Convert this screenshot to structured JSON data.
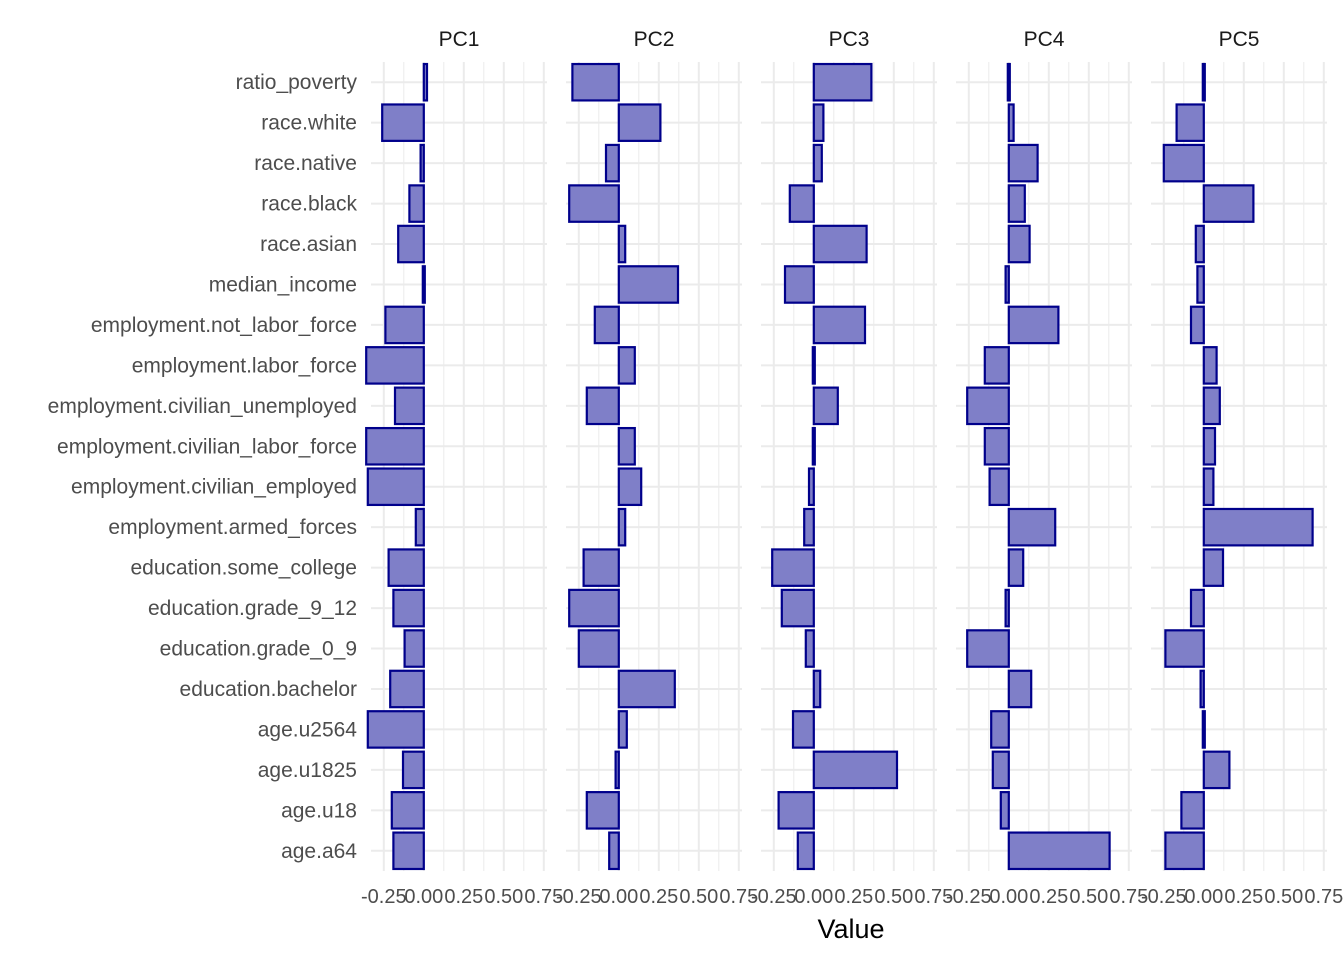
{
  "chart_data": {
    "type": "bar",
    "orientation": "horizontal",
    "facet_by": "component",
    "xlabel": "Value",
    "ylabel": "",
    "xlim": [
      -0.33,
      0.77
    ],
    "x_ticks": [
      -0.25,
      0,
      0.25,
      0.5,
      0.75
    ],
    "x_tick_labels": [
      "-0.25",
      "0.00",
      "0.25",
      "0.50",
      "0.75"
    ],
    "grid": true,
    "colors": {
      "fill": "#7f7fc8",
      "stroke": "#00008b",
      "grid": "#ebebeb"
    },
    "categories": [
      "ratio_poverty",
      "race.white",
      "race.native",
      "race.black",
      "race.asian",
      "median_income",
      "employment.not_labor_force",
      "employment.labor_force",
      "employment.civilian_unemployed",
      "employment.civilian_labor_force",
      "employment.civilian_employed",
      "employment.armed_forces",
      "education.some_college",
      "education.grade_9_12",
      "education.grade_0_9",
      "education.bachelor",
      "age.u2564",
      "age.u1825",
      "age.u18",
      "age.a64"
    ],
    "series": [
      {
        "name": "PC1",
        "values": [
          0.02,
          -0.26,
          -0.02,
          -0.09,
          -0.16,
          0.01,
          -0.24,
          -0.36,
          -0.18,
          -0.36,
          -0.35,
          -0.05,
          -0.22,
          -0.19,
          -0.12,
          -0.21,
          -0.35,
          -0.13,
          -0.2,
          -0.19
        ]
      },
      {
        "name": "PC2",
        "values": [
          -0.29,
          0.26,
          -0.08,
          -0.31,
          0.04,
          0.37,
          -0.15,
          0.1,
          -0.2,
          0.1,
          0.14,
          0.04,
          -0.22,
          -0.31,
          -0.25,
          0.35,
          0.05,
          -0.02,
          -0.2,
          -0.06
        ]
      },
      {
        "name": "PC3",
        "values": [
          0.36,
          0.06,
          0.05,
          -0.15,
          0.33,
          -0.18,
          0.32,
          0.0,
          0.15,
          0.0,
          -0.03,
          -0.06,
          -0.26,
          -0.2,
          -0.05,
          0.04,
          -0.13,
          0.52,
          -0.22,
          -0.1
        ]
      },
      {
        "name": "PC4",
        "values": [
          0.01,
          0.03,
          0.18,
          0.1,
          0.13,
          -0.02,
          0.31,
          -0.15,
          -0.26,
          -0.15,
          -0.12,
          0.29,
          0.09,
          -0.02,
          -0.26,
          0.14,
          -0.11,
          -0.1,
          -0.05,
          0.63
        ]
      },
      {
        "name": "PC5",
        "values": [
          -0.01,
          -0.17,
          -0.25,
          0.31,
          -0.05,
          -0.04,
          -0.08,
          0.08,
          0.1,
          0.07,
          0.06,
          0.68,
          0.12,
          -0.08,
          -0.24,
          -0.02,
          0.01,
          0.16,
          -0.14,
          -0.24
        ]
      }
    ]
  }
}
